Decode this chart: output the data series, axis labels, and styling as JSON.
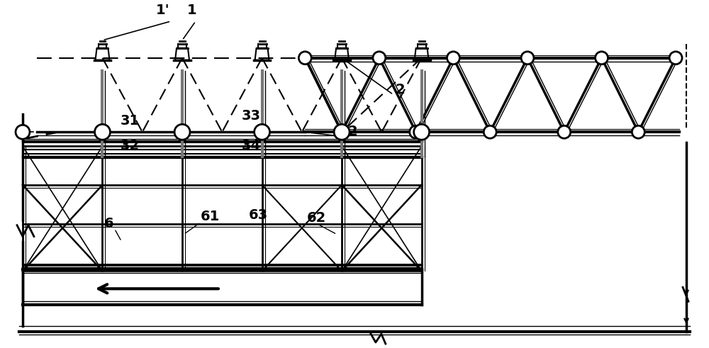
{
  "bg_color": "#ffffff",
  "line_color": "#000000",
  "gray_color": "#666666",
  "fig_width": 10.0,
  "fig_height": 4.91,
  "labels": {
    "1prime": "1'",
    "1": "1",
    "2": "2",
    "31": "31",
    "32": "32",
    "33": "33",
    "34": "34",
    "6": "6",
    "61": "61",
    "62": "62",
    "63": "63"
  }
}
